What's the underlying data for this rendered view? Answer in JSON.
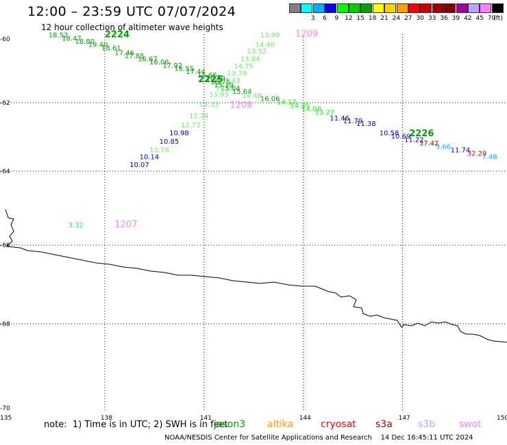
{
  "header": {
    "title": "12:00 – 23:59 UTC 07/07/2024",
    "subtitle": "12 hour collection of altimeter wave heights"
  },
  "legend": {
    "unit": "(ft)",
    "items": [
      {
        "label": "",
        "color": "#808080"
      },
      {
        "label": "3",
        "color": "#00ffff"
      },
      {
        "label": "6",
        "color": "#00b0ff"
      },
      {
        "label": "9",
        "color": "#0000ff"
      },
      {
        "label": "12",
        "color": "#00ff00"
      },
      {
        "label": "15",
        "color": "#00d000"
      },
      {
        "label": "18",
        "color": "#00a000"
      },
      {
        "label": "21",
        "color": "#ffff00"
      },
      {
        "label": "24",
        "color": "#ffd000"
      },
      {
        "label": "27",
        "color": "#ffa000"
      },
      {
        "label": "30",
        "color": "#ff0000"
      },
      {
        "label": "33",
        "color": "#d00000"
      },
      {
        "label": "36",
        "color": "#a00000"
      },
      {
        "label": "39",
        "color": "#800000"
      },
      {
        "label": "42",
        "color": "#a000a0"
      },
      {
        "label": "45",
        "color": "#c0a0ff"
      },
      {
        "label": "70",
        "color": "#ff80ff"
      },
      {
        "label": "",
        "color": "#000000"
      }
    ]
  },
  "axes": {
    "lat_ticks": [
      "-60",
      "-62",
      "-64",
      "-66",
      "-68",
      "-70"
    ],
    "lon_ticks": [
      "135",
      "138",
      "141",
      "144",
      "147",
      "150"
    ]
  },
  "footer": {
    "note": "note:  1) Time is in UTC; 2) SWH is in feet",
    "satellites": [
      {
        "name": "jason3",
        "color": "#00a000"
      },
      {
        "name": "altika",
        "color": "#ff9900"
      },
      {
        "name": "cryosat",
        "color": "#ff0000"
      },
      {
        "name": "s3a",
        "color": "#a00000"
      },
      {
        "name": "s3b",
        "color": "#c0a0ff"
      },
      {
        "name": "swot",
        "color": "#ff80ff"
      }
    ],
    "credit": "NOAA/NESDIS Center for Satellite Applications and Research    14 Dec 16:45:11 UTC 2024"
  },
  "pass_labels": [
    {
      "text": "2224",
      "lon": 138.0,
      "lat": -59.95,
      "color": "#00a000"
    },
    {
      "text": "2225",
      "lon": 140.82,
      "lat": -61.36,
      "color": "#00a000"
    },
    {
      "text": "2226",
      "lon": 147.2,
      "lat": -62.98,
      "color": "#00a000"
    },
    {
      "text": "1209",
      "lon": 143.76,
      "lat": -59.92,
      "color": "#ff80ff"
    },
    {
      "text": "1208",
      "lon": 141.78,
      "lat": -62.15,
      "color": "#ff80ff"
    },
    {
      "text": "1207",
      "lon": 138.3,
      "lat": -65.52,
      "color": "#ff80ff"
    }
  ],
  "wave_heights": [
    {
      "v": "18.52",
      "lon": 136.3,
      "lat": -59.95,
      "color": "#00a000"
    },
    {
      "v": "18.47",
      "lon": 136.7,
      "lat": -60.05,
      "color": "#00a000"
    },
    {
      "v": "18.80",
      "lon": 137.1,
      "lat": -60.15,
      "color": "#00a000"
    },
    {
      "v": "19.40",
      "lon": 137.5,
      "lat": -60.25,
      "color": "#00a000"
    },
    {
      "v": "18.61",
      "lon": 137.9,
      "lat": -60.35,
      "color": "#00a000"
    },
    {
      "v": "17.46",
      "lon": 138.3,
      "lat": -60.5,
      "color": "#00a000"
    },
    {
      "v": "17.85",
      "lon": 138.6,
      "lat": -60.6,
      "color": "#00a000"
    },
    {
      "v": "16.67",
      "lon": 139.0,
      "lat": -60.7,
      "color": "#00a000"
    },
    {
      "v": "16.06",
      "lon": 139.35,
      "lat": -60.8,
      "color": "#00a000"
    },
    {
      "v": "17.92",
      "lon": 139.75,
      "lat": -60.9,
      "color": "#00a000"
    },
    {
      "v": "16.55",
      "lon": 140.1,
      "lat": -61.0,
      "color": "#00a000"
    },
    {
      "v": "17.44",
      "lon": 140.45,
      "lat": -61.1,
      "color": "#00a000"
    },
    {
      "v": "15.66",
      "lon": 140.8,
      "lat": -61.2,
      "color": "#00a000"
    },
    {
      "v": "16.49",
      "lon": 141.05,
      "lat": -61.3,
      "color": "#00a000"
    },
    {
      "v": "16.75",
      "lon": 141.2,
      "lat": -61.42,
      "color": "#00a000"
    },
    {
      "v": "15.19",
      "lon": 141.3,
      "lat": -61.52,
      "color": "#00a000"
    },
    {
      "v": "15.04",
      "lon": 141.5,
      "lat": -61.62,
      "color": "#00a000"
    },
    {
      "v": "15.64",
      "lon": 141.85,
      "lat": -61.72,
      "color": "#00a000"
    },
    {
      "v": "16.06",
      "lon": 142.7,
      "lat": -61.95,
      "color": "#00a000"
    },
    {
      "v": "14.17",
      "lon": 143.2,
      "lat": -62.05,
      "color": "#00ff00"
    },
    {
      "v": "14.35",
      "lon": 143.6,
      "lat": -62.15,
      "color": "#00ff00"
    },
    {
      "v": "14.08",
      "lon": 143.95,
      "lat": -62.25,
      "color": "#00ff00"
    },
    {
      "v": "13.27",
      "lon": 144.35,
      "lat": -62.35,
      "color": "#00ff00"
    },
    {
      "v": "11.46",
      "lon": 144.8,
      "lat": -62.52,
      "color": "#0000cc"
    },
    {
      "v": "11.79",
      "lon": 145.2,
      "lat": -62.6,
      "color": "#0000cc"
    },
    {
      "v": "11.38",
      "lon": 145.6,
      "lat": -62.68,
      "color": "#0000cc"
    },
    {
      "v": "10.58",
      "lon": 146.3,
      "lat": -62.95,
      "color": "#0000cc"
    },
    {
      "v": "10.69",
      "lon": 146.65,
      "lat": -63.05,
      "color": "#0000cc"
    },
    {
      "v": "11.22",
      "lon": 147.05,
      "lat": -63.15,
      "color": "#0000cc"
    },
    {
      "v": "37.42",
      "lon": 147.5,
      "lat": -63.25,
      "color": "#800000"
    },
    {
      "v": "3.66",
      "lon": 148.0,
      "lat": -63.35,
      "color": "#00b0ff"
    },
    {
      "v": "11.74",
      "lon": 148.45,
      "lat": -63.45,
      "color": "#0000cc"
    },
    {
      "v": "32.29",
      "lon": 148.95,
      "lat": -63.55,
      "color": "#d00000"
    },
    {
      "v": "7.48",
      "lon": 149.4,
      "lat": -63.65,
      "color": "#00b0ff"
    },
    {
      "v": "13.99",
      "lon": 142.7,
      "lat": -59.95,
      "color": "#66ee66"
    },
    {
      "v": "14.40",
      "lon": 142.55,
      "lat": -60.25,
      "color": "#66ee66"
    },
    {
      "v": "13.52",
      "lon": 142.3,
      "lat": -60.45,
      "color": "#66ee66"
    },
    {
      "v": "13.84",
      "lon": 142.1,
      "lat": -60.7,
      "color": "#66ee66"
    },
    {
      "v": "14.75",
      "lon": 141.9,
      "lat": -60.92,
      "color": "#66ee66"
    },
    {
      "v": "13.79",
      "lon": 141.7,
      "lat": -61.15,
      "color": "#66ee66"
    },
    {
      "v": "13.43",
      "lon": 141.5,
      "lat": -61.38,
      "color": "#66ee66"
    },
    {
      "v": "14.62",
      "lon": 141.35,
      "lat": -61.6,
      "color": "#66ee66"
    },
    {
      "v": "13.93",
      "lon": 141.15,
      "lat": -61.82,
      "color": "#66ee66"
    },
    {
      "v": "13.33",
      "lon": 140.85,
      "lat": -62.12,
      "color": "#66ee66"
    },
    {
      "v": "12.24",
      "lon": 140.55,
      "lat": -62.45,
      "color": "#66ee66"
    },
    {
      "v": "12.73",
      "lon": 140.3,
      "lat": -62.72,
      "color": "#66ee66"
    },
    {
      "v": "10.98",
      "lon": 139.95,
      "lat": -62.95,
      "color": "#0000cc"
    },
    {
      "v": "10.85",
      "lon": 139.65,
      "lat": -63.2,
      "color": "#0000cc"
    },
    {
      "v": "13.78",
      "lon": 139.35,
      "lat": -63.45,
      "color": "#66ee66"
    },
    {
      "v": "10.14",
      "lon": 139.05,
      "lat": -63.65,
      "color": "#0000cc"
    },
    {
      "v": "10.07",
      "lon": 138.75,
      "lat": -63.88,
      "color": "#0000cc"
    },
    {
      "v": "14.48",
      "lon": 142.15,
      "lat": -61.85,
      "color": "#66ee66"
    },
    {
      "v": "3.32",
      "lon": 136.9,
      "lat": -65.52,
      "color": "#33cccc"
    }
  ]
}
